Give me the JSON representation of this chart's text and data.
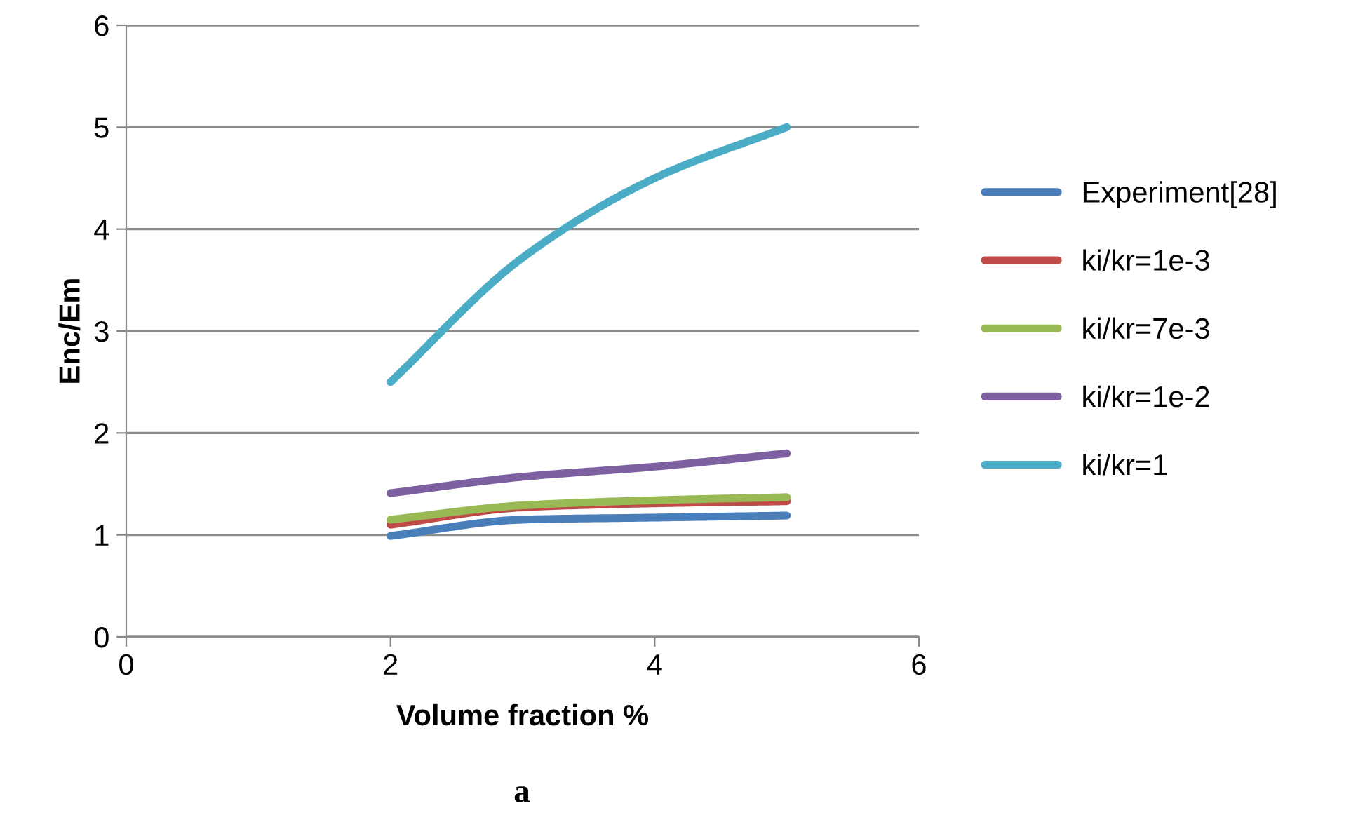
{
  "chart_data": {
    "type": "line",
    "xlabel": "Volume fraction %",
    "ylabel": "Enc/Em",
    "annotations": [
      "a"
    ],
    "x": [
      2,
      3,
      4,
      5
    ],
    "series": [
      {
        "name": "Experiment[28]",
        "color": "#4a7ebb",
        "values": [
          0.99,
          1.15,
          1.17,
          1.19
        ]
      },
      {
        "name": "ki/kr=1e-3",
        "color": "#be4b48",
        "values": [
          1.1,
          1.27,
          1.31,
          1.33
        ]
      },
      {
        "name": "ki/kr=7e-3",
        "color": "#98b954",
        "values": [
          1.15,
          1.29,
          1.34,
          1.37
        ]
      },
      {
        "name": "ki/kr=1e-2",
        "color": "#7d60a0",
        "values": [
          1.41,
          1.57,
          1.67,
          1.8
        ]
      },
      {
        "name": "ki/kr=1",
        "color": "#4bacc6",
        "values": [
          2.5,
          3.72,
          4.5,
          5.0
        ]
      }
    ],
    "xlim": [
      0,
      6
    ],
    "xticks": [
      0,
      2,
      4,
      6
    ],
    "ylim": [
      0,
      6
    ],
    "yticks": [
      0,
      1,
      2,
      3,
      4,
      5,
      6
    ],
    "grid": "y",
    "legend": "right",
    "marker": "none",
    "line_style": "solid"
  }
}
